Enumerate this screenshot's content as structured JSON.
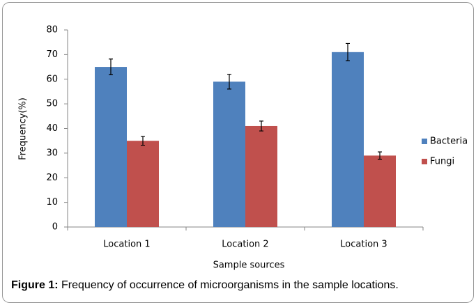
{
  "chart_data": {
    "type": "bar",
    "y_label": "Frequency(%)",
    "x_label": "Sample sources",
    "categories": [
      "Location 1",
      "Location 2",
      "Location 3"
    ],
    "series": [
      {
        "name": "Bacteria",
        "color": "#4f81bd",
        "values": [
          65,
          59,
          71
        ],
        "errors": [
          3.2,
          3,
          3.5
        ]
      },
      {
        "name": "Fungi",
        "color": "#c0504d",
        "values": [
          35,
          41,
          29
        ],
        "errors": [
          1.8,
          2,
          1.5
        ]
      }
    ],
    "ylim": [
      0,
      80
    ],
    "yticks": [
      0,
      10,
      20,
      30,
      40,
      50,
      60,
      70,
      80
    ],
    "legend": "right",
    "caption_label": "Figure 1:",
    "caption": "Frequency of occurrence of microorganisms in the sample locations."
  }
}
